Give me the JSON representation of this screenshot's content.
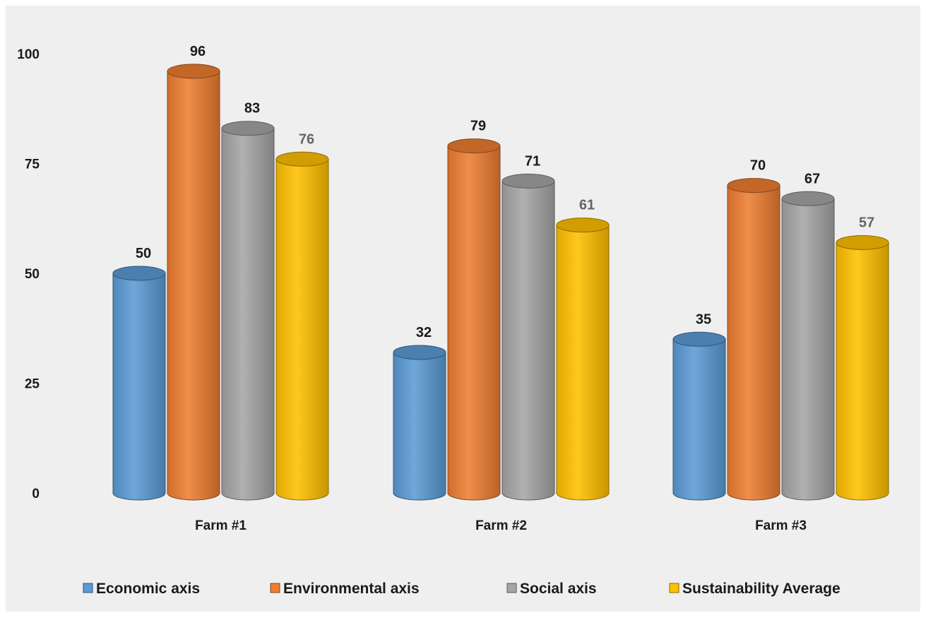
{
  "chart_data": {
    "type": "bar",
    "title": "",
    "xlabel": "",
    "ylabel": "",
    "categories": [
      "Farm #1",
      "Farm #2",
      "Farm #3"
    ],
    "ylim": [
      0,
      100
    ],
    "yticks": [
      "0",
      "25",
      "50",
      "75",
      "100"
    ],
    "grid": false,
    "legend_position": "bottom",
    "series": [
      {
        "name": "Economic axis",
        "values": [
          50,
          32,
          35
        ],
        "color": "#5b9bd5",
        "label_color": "#1a1a1a"
      },
      {
        "name": "Environmental axis",
        "values": [
          96,
          79,
          70
        ],
        "color": "#ed7d31",
        "label_color": "#1a1a1a"
      },
      {
        "name": "Social axis",
        "values": [
          83,
          71,
          67
        ],
        "color": "#a5a5a5",
        "label_color": "#1a1a1a"
      },
      {
        "name": "Sustainability Average",
        "values": [
          76,
          61,
          57
        ],
        "color": "#ffc000",
        "label_color": "#666666"
      }
    ]
  }
}
